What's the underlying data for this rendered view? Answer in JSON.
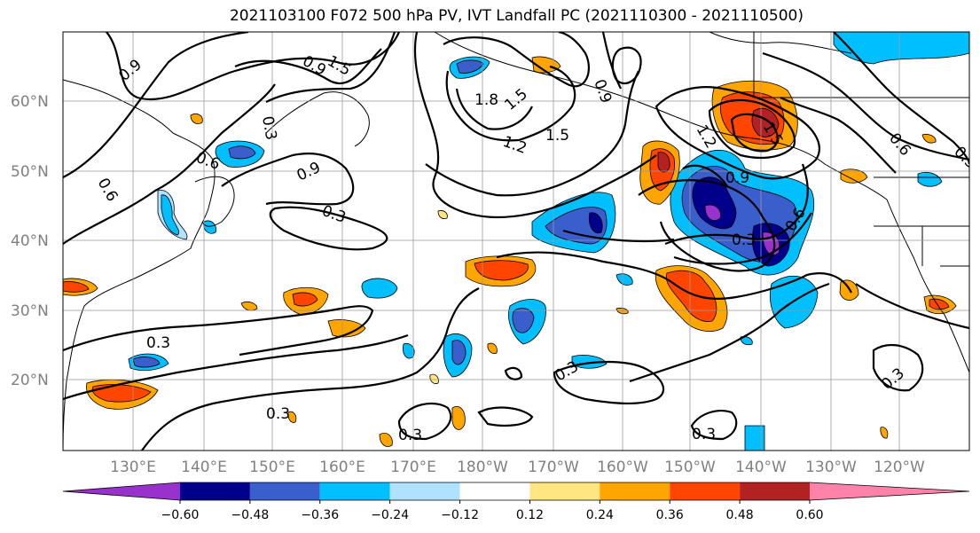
{
  "chart_data": {
    "type": "contour-map",
    "title": "2021103100 F072 500 hPa PV, IVT Landfall PC (2021110300 - 2021110500)",
    "latitude_ticks": [
      "60°N",
      "50°N",
      "40°N",
      "30°N",
      "20°N"
    ],
    "longitude_ticks": [
      "130°E",
      "140°E",
      "150°E",
      "160°E",
      "170°E",
      "180°W",
      "170°W",
      "160°W",
      "150°W",
      "140°W",
      "130°W",
      "120°W"
    ],
    "lat_values": [
      60,
      50,
      40,
      30,
      20
    ],
    "lon_values": [
      130,
      140,
      150,
      160,
      170,
      180,
      190,
      200,
      210,
      220,
      230,
      240
    ],
    "extent": {
      "lon_min": 120,
      "lon_max": 247,
      "lat_min": 10,
      "lat_max": 70
    },
    "grid": true,
    "contour_field": "500 hPa PV",
    "contour_labels": [
      "0.9",
      "0.9",
      "1.5",
      "0.3",
      "1.8",
      "1.5",
      "1.2",
      "1.5",
      "0.9",
      "1.2",
      "1.5",
      "0.6",
      "0.3",
      "0.6",
      "0.6",
      "0.3",
      "0.9",
      "0.6",
      "0.9",
      "0.3",
      "0.3",
      "0.3",
      "0.3",
      "0.3",
      "0.3"
    ],
    "colorbar": {
      "ticks": [
        "−0.60",
        "−0.48",
        "−0.36",
        "−0.24",
        "−0.12",
        "0.12",
        "0.24",
        "0.36",
        "0.48",
        "0.60"
      ],
      "tick_values": [
        -0.6,
        -0.48,
        -0.36,
        -0.24,
        -0.12,
        0.12,
        0.24,
        0.36,
        0.48,
        0.6
      ],
      "colors": [
        "#9932cc",
        "#00008b",
        "#3a5fcd",
        "#00bfff",
        "#b0e2ff",
        "#ffffff",
        "#ffe680",
        "#ffa500",
        "#ff4500",
        "#b22222",
        "#ff82ab"
      ],
      "extend": "both"
    }
  }
}
